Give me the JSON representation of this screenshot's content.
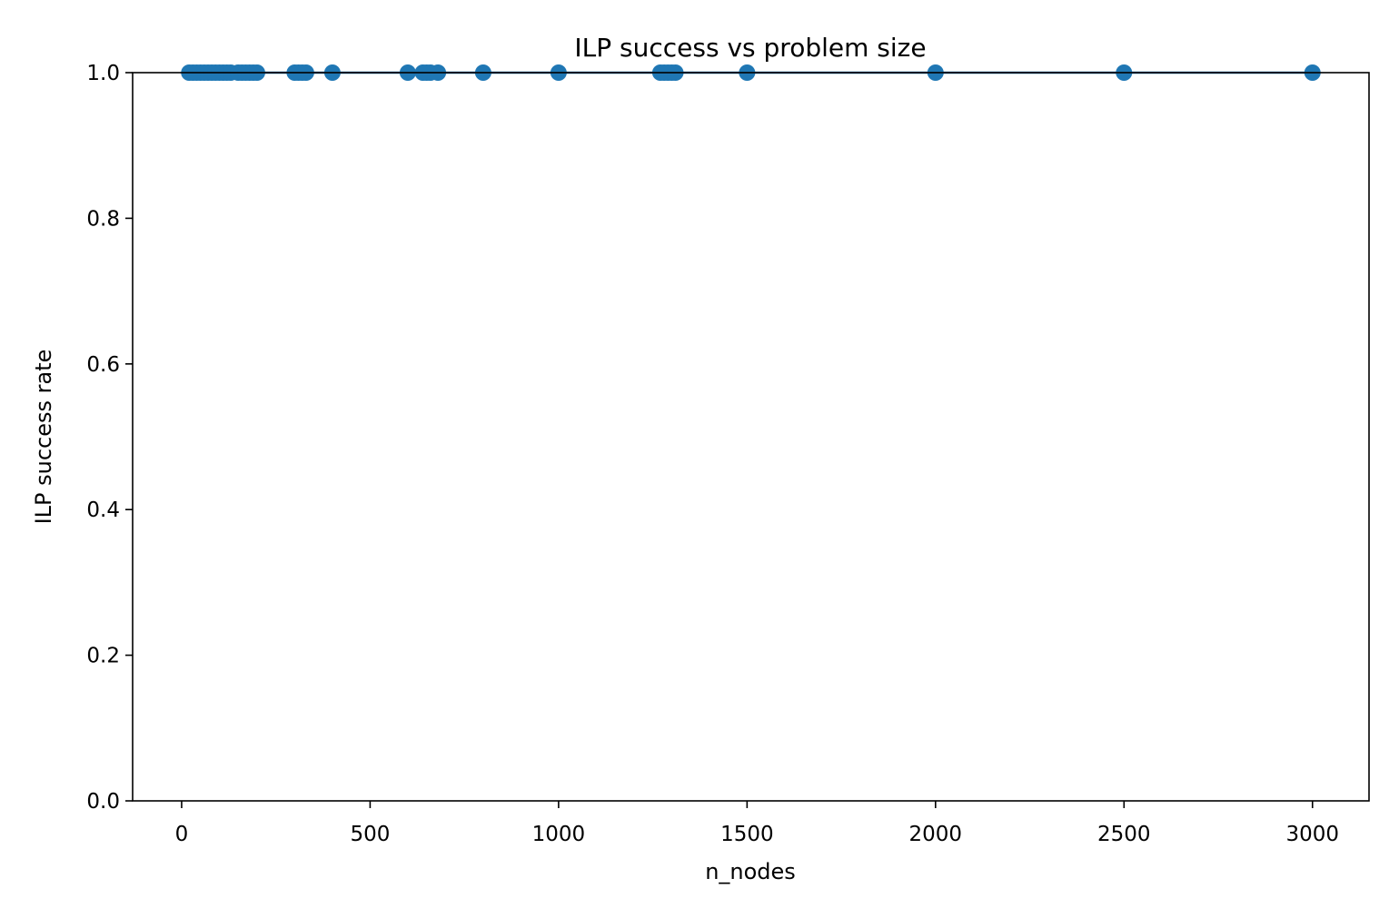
{
  "chart_data": {
    "type": "scatter",
    "title": "ILP success vs problem size",
    "xlabel": "n_nodes",
    "ylabel": "ILP success rate",
    "xlim": [
      -130,
      3150
    ],
    "ylim": [
      0.0,
      1.0
    ],
    "xticks": [
      0,
      500,
      1000,
      1500,
      2000,
      2500,
      3000
    ],
    "yticks": [
      0.0,
      0.2,
      0.4,
      0.6,
      0.8,
      1.0
    ],
    "xtick_labels": [
      "0",
      "500",
      "1000",
      "1500",
      "2000",
      "2500",
      "3000"
    ],
    "ytick_labels": [
      "0.0",
      "0.2",
      "0.4",
      "0.6",
      "0.8",
      "1.0"
    ],
    "grid": false,
    "marker_color": "#1f77b4",
    "line_color": "#1f77b4",
    "series": [
      {
        "x": [
          20,
          30,
          40,
          50,
          60,
          70,
          80,
          90,
          100,
          110,
          120,
          130,
          150,
          160,
          170,
          180,
          190,
          200,
          300,
          310,
          320,
          330,
          400,
          600,
          640,
          650,
          660,
          680,
          800,
          1000,
          1270,
          1280,
          1290,
          1300,
          1310,
          1500,
          2000,
          2500,
          3000
        ],
        "y": [
          1.0,
          1.0,
          1.0,
          1.0,
          1.0,
          1.0,
          1.0,
          1.0,
          1.0,
          1.0,
          1.0,
          1.0,
          1.0,
          1.0,
          1.0,
          1.0,
          1.0,
          1.0,
          1.0,
          1.0,
          1.0,
          1.0,
          1.0,
          1.0,
          1.0,
          1.0,
          1.0,
          1.0,
          1.0,
          1.0,
          1.0,
          1.0,
          1.0,
          1.0,
          1.0,
          1.0,
          1.0,
          1.0,
          1.0
        ]
      }
    ]
  }
}
